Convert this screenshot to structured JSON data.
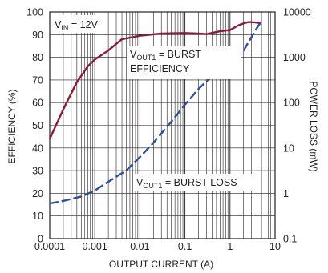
{
  "chart_data": {
    "type": "line",
    "xlabel": "OUTPUT CURRENT (A)",
    "ylabel": "EFFICIENCY (%)",
    "y2label": "POWER LOSS (mW)",
    "xscale": "log",
    "xlim": [
      0.0001,
      10
    ],
    "ylim": [
      0,
      100
    ],
    "y2scale": "log",
    "y2lim": [
      0.1,
      10000
    ],
    "grid": true,
    "x_ticks": [
      "0.0001",
      "0.001",
      "0.01",
      "0.1",
      "1",
      "10"
    ],
    "y_ticks": [
      "0",
      "10",
      "20",
      "30",
      "40",
      "50",
      "60",
      "70",
      "80",
      "90",
      "100"
    ],
    "y2_ticks": [
      "0.1",
      "1",
      "10",
      "100",
      "1000",
      "10000"
    ],
    "series": [
      {
        "name": "VOUT1 = BURST EFFICIENCY",
        "axis": "left",
        "style": "solid",
        "color": "#8b1a3a",
        "x": [
          0.0001,
          0.0002,
          0.0004,
          0.0007,
          0.001,
          0.002,
          0.004,
          0.01,
          0.03,
          0.1,
          0.2,
          0.3,
          0.6,
          1,
          1.5,
          2,
          2.5,
          3,
          4,
          5
        ],
        "y": [
          44,
          57,
          69,
          76,
          79,
          83,
          88,
          89.5,
          90.5,
          90.7,
          90.5,
          90.2,
          91.5,
          92,
          94,
          95,
          95.5,
          95.5,
          95.3,
          95
        ]
      },
      {
        "name": "VOUT1 = BURST LOSS",
        "axis": "right",
        "style": "dashed",
        "color": "#2e4f9c",
        "x": [
          0.0001,
          0.0002,
          0.0005,
          0.001,
          0.002,
          0.005,
          0.01,
          0.02,
          0.05,
          0.1,
          0.2,
          0.5,
          1,
          2,
          3,
          4,
          5
        ],
        "y": [
          0.6,
          0.68,
          0.85,
          1.15,
          1.8,
          3.2,
          6.3,
          13,
          38,
          90,
          200,
          480,
          920,
          1400,
          2800,
          4500,
          6300
        ]
      }
    ],
    "annotations": {
      "vin": {
        "prefix": "V",
        "sub": "IN",
        "suffix": " = 12V"
      },
      "eff": {
        "prefix": "V",
        "sub": "OUT1",
        "suffix": " = BURST",
        "line2": "EFFICIENCY"
      },
      "loss": {
        "prefix": "V",
        "sub": "OUT1",
        "suffix": " = BURST LOSS"
      }
    }
  }
}
